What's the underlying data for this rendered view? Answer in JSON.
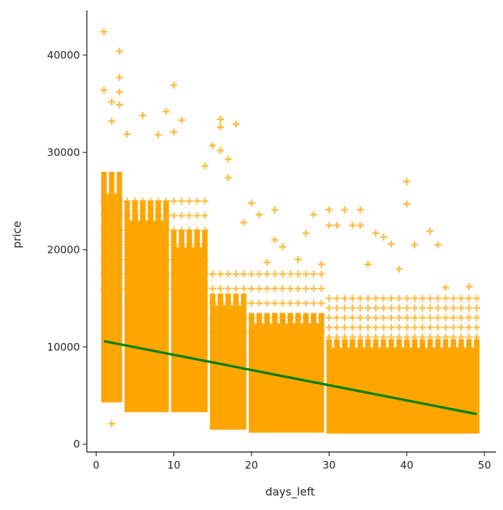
{
  "chart_data": {
    "type": "scatter",
    "title": "",
    "xlabel": "days_left",
    "ylabel": "price",
    "xlim": [
      -1.2,
      51.5
    ],
    "ylim": [
      -800,
      44600
    ],
    "x_ticks": [
      0,
      10,
      20,
      30,
      40,
      50
    ],
    "x_tick_labels": [
      "0",
      "10",
      "20",
      "30",
      "40",
      "50"
    ],
    "y_ticks": [
      0,
      10000,
      20000,
      30000,
      40000
    ],
    "y_tick_labels": [
      "0",
      "10000",
      "20000",
      "30000",
      "40000"
    ],
    "grid": false,
    "legend": null,
    "marker": "+",
    "colors": {
      "points": "#FFA500",
      "fit_line": "#008000",
      "axis": "#000000",
      "text": "#262626"
    },
    "series": [
      {
        "kind": "scatter",
        "dense_band_ranges": [
          {
            "x_from": 1,
            "x_to": 3,
            "y_min": 4300,
            "y_max": 28000
          },
          {
            "x_from": 4,
            "x_to": 9,
            "y_min": 3300,
            "y_max": 25000
          },
          {
            "x_from": 10,
            "x_to": 14,
            "y_min": 3300,
            "y_max": 22000
          },
          {
            "x_from": 15,
            "x_to": 19,
            "y_min": 1500,
            "y_max": 15500
          },
          {
            "x_from": 20,
            "x_to": 29,
            "y_min": 1200,
            "y_max": 13500
          },
          {
            "x_from": 30,
            "x_to": 49,
            "y_min": 1100,
            "y_max": 10800
          }
        ],
        "outliers": [
          [
            1,
            42400
          ],
          [
            3,
            40400
          ],
          [
            3,
            37700
          ],
          [
            1,
            36400
          ],
          [
            3,
            36200
          ],
          [
            10,
            36900
          ],
          [
            2,
            35200
          ],
          [
            3,
            34900
          ],
          [
            9,
            34200
          ],
          [
            6,
            33800
          ],
          [
            11,
            33300
          ],
          [
            16,
            33400
          ],
          [
            18,
            32900
          ],
          [
            16,
            32600
          ],
          [
            2,
            33200
          ],
          [
            4,
            31900
          ],
          [
            8,
            31800
          ],
          [
            10,
            32100
          ],
          [
            15,
            30700
          ],
          [
            16,
            30200
          ],
          [
            17,
            29300
          ],
          [
            14,
            28600
          ],
          [
            17,
            27400
          ],
          [
            40,
            27000
          ],
          [
            40,
            24700
          ],
          [
            23,
            24100
          ],
          [
            30,
            24100
          ],
          [
            32,
            24100
          ],
          [
            34,
            24100
          ],
          [
            20,
            24800
          ],
          [
            21,
            23600
          ],
          [
            30,
            22500
          ],
          [
            31,
            22500
          ],
          [
            33,
            22500
          ],
          [
            34,
            22500
          ],
          [
            28,
            23600
          ],
          [
            27,
            21700
          ],
          [
            36,
            21700
          ],
          [
            37,
            21300
          ],
          [
            43,
            21900
          ],
          [
            19,
            22800
          ],
          [
            2,
            2100
          ],
          [
            24,
            20300
          ],
          [
            38,
            20600
          ],
          [
            41,
            20500
          ],
          [
            44,
            20500
          ],
          [
            45,
            16100
          ],
          [
            48,
            16200
          ],
          [
            23,
            21000
          ],
          [
            26,
            19000
          ],
          [
            22,
            18700
          ],
          [
            29,
            18500
          ],
          [
            35,
            18500
          ],
          [
            39,
            18000
          ]
        ]
      },
      {
        "kind": "fit_line",
        "x": [
          1,
          49
        ],
        "y": [
          10600,
          3100
        ]
      }
    ]
  }
}
